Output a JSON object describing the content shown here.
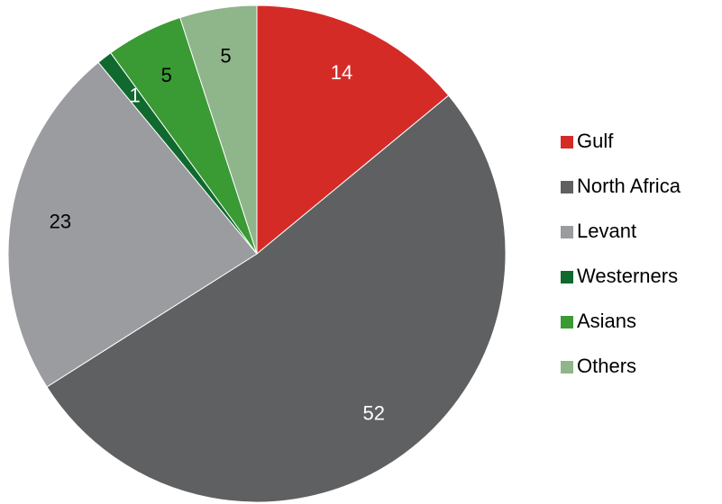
{
  "chart_data": {
    "type": "pie",
    "categories": [
      "Gulf",
      "North Africa",
      "Levant",
      "Westerners",
      "Asians",
      "Others"
    ],
    "values": [
      14,
      52,
      23,
      1,
      5,
      5
    ],
    "colors": [
      "#d52b27",
      "#5f6062",
      "#9b9c9f",
      "#10692e",
      "#3a9a34",
      "#8fb58a"
    ],
    "legend": "right"
  }
}
